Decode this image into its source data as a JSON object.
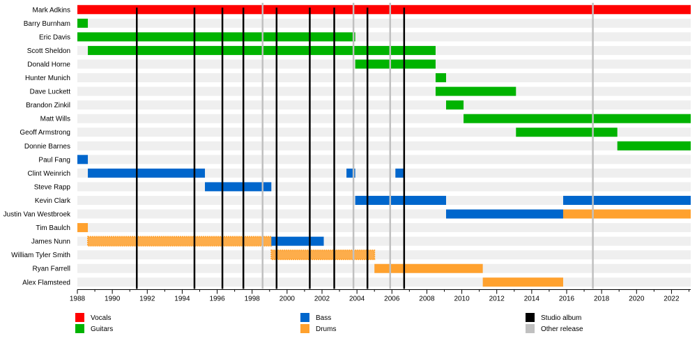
{
  "chart_data": {
    "type": "timeline",
    "xlim": [
      1988,
      2023.1
    ],
    "x_ticks": [
      "1988",
      "1990",
      "1992",
      "1994",
      "1996",
      "1998",
      "2000",
      "2002",
      "2004",
      "2006",
      "2008",
      "2010",
      "2012",
      "2014",
      "2016",
      "2018",
      "2020",
      "2022"
    ],
    "members": [
      "Mark Adkins",
      "Barry Burnham",
      "Eric Davis",
      "Scott Sheldon",
      "Donald Horne",
      "Hunter Munich",
      "Dave Luckett",
      "Brandon Zinkil",
      "Matt Wills",
      "Geoff Armstrong",
      "Donnie Barnes",
      "Paul Fang",
      "Clint Weinrich",
      "Steve Rapp",
      "Kevin Clark",
      "Justin Van Westbroek",
      "Tim Baulch",
      "James Nunn",
      "William Tyler Smith",
      "Ryan Farrell",
      "Alex Flamsteed"
    ],
    "roles": {
      "vocals": {
        "label": "Vocals",
        "color": "#ff0000"
      },
      "guitars": {
        "label": "Guitars",
        "color": "#00b300"
      },
      "bass": {
        "label": "Bass",
        "color": "#0066cc"
      },
      "drums": {
        "label": "Drums",
        "color": "#ffa12e"
      }
    },
    "bars": [
      {
        "member": 0,
        "role": "vocals",
        "start": 1988,
        "end": 2023.1
      },
      {
        "member": 1,
        "role": "guitars",
        "start": 1988,
        "end": 1988.6
      },
      {
        "member": 2,
        "role": "guitars",
        "start": 1988,
        "end": 2003.9
      },
      {
        "member": 3,
        "role": "guitars",
        "start": 1988.6,
        "end": 2008.5
      },
      {
        "member": 4,
        "role": "guitars",
        "start": 2003.9,
        "end": 2008.5
      },
      {
        "member": 5,
        "role": "guitars",
        "start": 2008.5,
        "end": 2009.1
      },
      {
        "member": 6,
        "role": "guitars",
        "start": 2008.5,
        "end": 2013.1
      },
      {
        "member": 7,
        "role": "guitars",
        "start": 2009.1,
        "end": 2010.1
      },
      {
        "member": 8,
        "role": "guitars",
        "start": 2010.1,
        "end": 2023.1
      },
      {
        "member": 9,
        "role": "guitars",
        "start": 2013.1,
        "end": 2018.9
      },
      {
        "member": 10,
        "role": "guitars",
        "start": 2018.9,
        "end": 2023.1
      },
      {
        "member": 11,
        "role": "bass",
        "start": 1988,
        "end": 1988.6
      },
      {
        "member": 12,
        "role": "bass",
        "start": 1988.6,
        "end": 1995.3
      },
      {
        "member": 12,
        "role": "bass",
        "start": 2003.4,
        "end": 2003.9
      },
      {
        "member": 12,
        "role": "bass",
        "start": 2006.2,
        "end": 2006.7
      },
      {
        "member": 13,
        "role": "bass",
        "start": 1995.3,
        "end": 1999.1
      },
      {
        "member": 14,
        "role": "bass",
        "start": 2003.9,
        "end": 2009.1
      },
      {
        "member": 14,
        "role": "bass",
        "start": 2015.8,
        "end": 2023.1
      },
      {
        "member": 15,
        "role": "bass",
        "start": 2009.1,
        "end": 2015.8
      },
      {
        "member": 15,
        "role": "drums",
        "start": 2015.8,
        "end": 2023.1
      },
      {
        "member": 16,
        "role": "drums",
        "start": 1988,
        "end": 1988.6
      },
      {
        "member": 17,
        "role": "drums",
        "start": 1988.6,
        "end": 1999.1,
        "fuzzy": true
      },
      {
        "member": 17,
        "role": "bass",
        "start": 1999.1,
        "end": 2002.1
      },
      {
        "member": 18,
        "role": "drums",
        "start": 1999.1,
        "end": 2005,
        "fuzzy": true
      },
      {
        "member": 19,
        "role": "drums",
        "start": 2005,
        "end": 2011.2
      },
      {
        "member": 20,
        "role": "drums",
        "start": 2011.2,
        "end": 2015.8
      }
    ],
    "studio_albums": [
      1991.4,
      1994.7,
      1996.3,
      1997.5,
      1999.4,
      2001.3,
      2002.7,
      2004.6,
      2006.7
    ],
    "other_releases": [
      1998.6,
      2003.8,
      2005.9,
      2017.5
    ],
    "legend": {
      "vocals": "Vocals",
      "guitars": "Guitars",
      "bass": "Bass",
      "drums": "Drums",
      "studio_album": "Studio album",
      "other_release": "Other release",
      "studio_album_color": "#000000",
      "other_release_color": "#c0c0c0"
    }
  }
}
